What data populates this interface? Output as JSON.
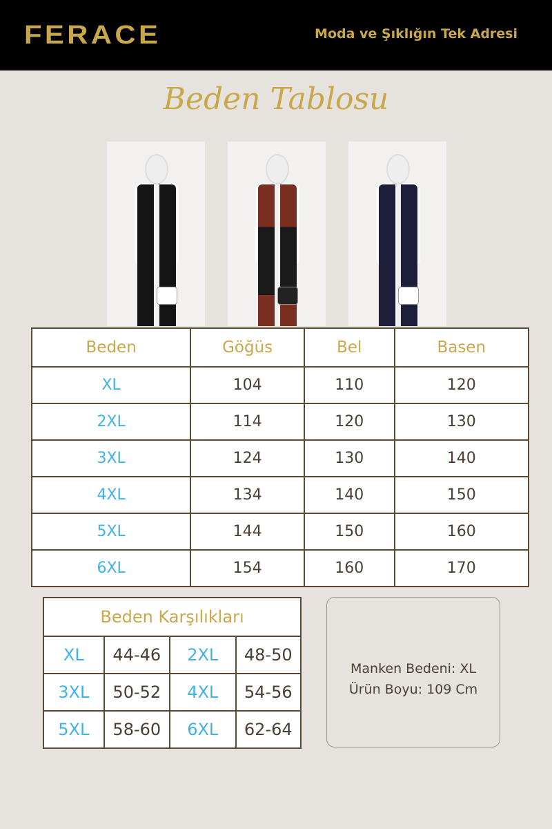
{
  "brand": {
    "logo": "FERACE",
    "tagline": "Moda ve Şıklığın Tek Adresi"
  },
  "title": "Beden Tablosu",
  "colors": {
    "gold": "#c9a84c",
    "blue": "#3fb3e8",
    "header_bg": "#000000",
    "page_bg": "#e6e3df"
  },
  "photos": [
    {
      "vest": "#151515"
    },
    {
      "vest": "#1a1a1a",
      "accent": "#7a2e20"
    },
    {
      "vest": "#1d1f3a"
    }
  ],
  "size_table": {
    "headers": [
      "Beden",
      "Göğüs",
      "Bel",
      "Basen"
    ],
    "rows": [
      [
        "XL",
        "104",
        "110",
        "120"
      ],
      [
        "2XL",
        "114",
        "120",
        "130"
      ],
      [
        "3XL",
        "124",
        "130",
        "140"
      ],
      [
        "4XL",
        "134",
        "140",
        "150"
      ],
      [
        "5XL",
        "144",
        "150",
        "160"
      ],
      [
        "6XL",
        "154",
        "160",
        "170"
      ]
    ]
  },
  "equivalents": {
    "title": "Beden Karşılıkları",
    "rows": [
      [
        "XL",
        "44-46",
        "2XL",
        "48-50"
      ],
      [
        "3XL",
        "50-52",
        "4XL",
        "54-56"
      ],
      [
        "5XL",
        "58-60",
        "6XL",
        "62-64"
      ]
    ]
  },
  "info": {
    "model_size": "Manken Bedeni: XL",
    "length": "Ürün Boyu: 109 Cm"
  }
}
